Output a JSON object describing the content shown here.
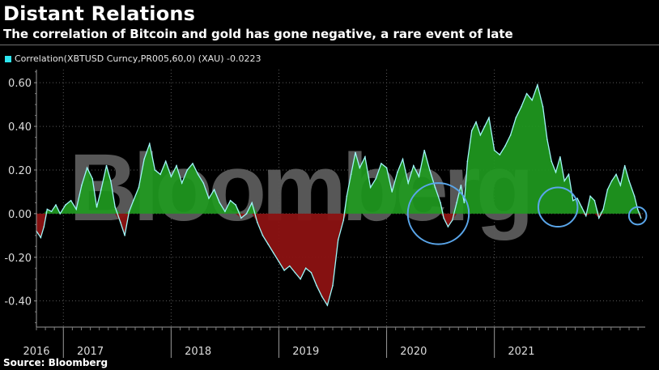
{
  "header": {
    "title": "Distant Relations",
    "subtitle": "The correlation of Bitcoin and gold has gone negative, a rare event of late"
  },
  "legend": {
    "label": "Correlation(XBTUSD Curncy,PR005,60,0) (XAU) -0.0223",
    "color": "#2ee6f0"
  },
  "watermark": "Bloomberg",
  "source": "Source: Bloomberg",
  "colors": {
    "positive_fill": "#1f9a1f",
    "negative_fill": "#8c1212",
    "line": "#9ff6f8",
    "circle": "#5aa6ea",
    "grid": "#5a5a5a"
  },
  "chart_data": {
    "type": "area",
    "title": "Distant Relations",
    "subtitle": "The correlation of Bitcoin and gold has gone negative, a rare event of late",
    "series": [
      {
        "name": "Correlation(XBTUSD Curncy,PR005,60,0) (XAU)",
        "last_value": -0.0223,
        "x": [
          2016.0,
          2016.04,
          2016.07,
          2016.1,
          2016.14,
          2016.18,
          2016.22,
          2016.27,
          2016.32,
          2016.37,
          2016.42,
          2016.47,
          2016.52,
          2016.56,
          2016.6,
          2016.65,
          2016.69,
          2016.73,
          2016.78,
          2016.82,
          2016.86,
          2016.9,
          2016.95,
          2017.0,
          2017.05,
          2017.1,
          2017.15,
          2017.2,
          2017.25,
          2017.3,
          2017.35,
          2017.4,
          2017.45,
          2017.5,
          2017.55,
          2017.6,
          2017.65,
          2017.7,
          2017.75,
          2017.8,
          2017.85,
          2017.9,
          2017.95,
          2018.0,
          2018.05,
          2018.1,
          2018.15,
          2018.2,
          2018.25,
          2018.3,
          2018.35,
          2018.4,
          2018.45,
          2018.5,
          2018.55,
          2018.6,
          2018.65,
          2018.7,
          2018.75,
          2018.8,
          2018.85,
          2018.88,
          2018.92,
          2018.96,
          2019.0,
          2019.05,
          2019.1,
          2019.15,
          2019.2,
          2019.25,
          2019.3,
          2019.35,
          2019.4,
          2019.45,
          2019.5,
          2019.55,
          2019.6,
          2019.65,
          2019.7,
          2019.75,
          2019.78,
          2019.82,
          2019.86,
          2019.9,
          2019.94,
          2019.97,
          2020.0,
          2020.04,
          2020.08,
          2020.12,
          2020.16,
          2020.2,
          2020.25,
          2020.3,
          2020.35,
          2020.4,
          2020.45,
          2020.5,
          2020.55,
          2020.6,
          2020.65,
          2020.7,
          2020.74,
          2020.78,
          2020.82,
          2020.86,
          2020.9,
          2020.94,
          2020.98,
          2021.02,
          2021.06,
          2021.1,
          2021.14,
          2021.18,
          2021.22,
          2021.26,
          2021.3,
          2021.34,
          2021.38,
          2021.42,
          2021.46,
          2021.5,
          2021.55,
          2021.58,
          2021.61
        ],
        "values": [
          -0.08,
          -0.11,
          -0.06,
          0.02,
          0.01,
          0.04,
          0.0,
          0.04,
          0.06,
          0.02,
          0.13,
          0.21,
          0.16,
          0.03,
          0.11,
          0.22,
          0.15,
          0.03,
          -0.04,
          -0.1,
          0.01,
          0.06,
          0.12,
          0.25,
          0.32,
          0.2,
          0.18,
          0.24,
          0.17,
          0.22,
          0.14,
          0.2,
          0.23,
          0.18,
          0.14,
          0.07,
          0.11,
          0.05,
          0.01,
          0.06,
          0.04,
          -0.02,
          0.0,
          0.05,
          -0.04,
          -0.1,
          -0.14,
          -0.18,
          -0.22,
          -0.26,
          -0.24,
          -0.27,
          -0.3,
          -0.25,
          -0.27,
          -0.33,
          -0.38,
          -0.42,
          -0.33,
          -0.12,
          -0.03,
          0.08,
          0.18,
          0.28,
          0.21,
          0.26,
          0.12,
          0.16,
          0.23,
          0.21,
          0.1,
          0.19,
          0.25,
          0.14,
          0.22,
          0.17,
          0.29,
          0.2,
          0.12,
          0.05,
          -0.02,
          -0.06,
          -0.03,
          0.05,
          0.13,
          0.05,
          0.24,
          0.38,
          0.42,
          0.36,
          0.4,
          0.44,
          0.29,
          0.27,
          0.31,
          0.36,
          0.44,
          0.49,
          0.55,
          0.52,
          0.59,
          0.49,
          0.34,
          0.24,
          0.19,
          0.26,
          0.15,
          0.18,
          0.06,
          0.07,
          0.03,
          -0.01,
          0.08,
          0.06,
          -0.02,
          0.02,
          0.11,
          0.15,
          0.18,
          0.13,
          0.22,
          0.15,
          0.08,
          0.02,
          -0.02
        ]
      }
    ],
    "xlim": [
      2016.0,
      2021.65
    ],
    "ylim": [
      -0.52,
      0.66
    ],
    "yticks": [
      0.6,
      0.4,
      0.2,
      0.0,
      -0.2,
      -0.4
    ],
    "ytick_labels": [
      "0.60",
      "0.40",
      "0.20",
      "0.00",
      "-0.20",
      "-0.40"
    ],
    "xtick_labels": [
      {
        "label": "2016",
        "center": 2016.0
      },
      {
        "label": "2017",
        "center": 2016.5
      },
      {
        "label": "2018",
        "center": 2017.5
      },
      {
        "label": "2019",
        "center": 2018.5
      },
      {
        "label": "2020",
        "center": 2019.5
      },
      {
        "label": "2021",
        "center": 2020.5
      }
    ],
    "year_dividers": [
      2016.25,
      2017.25,
      2018.25,
      2019.25,
      2020.25
    ],
    "annotations": [
      {
        "type": "circle",
        "x": 2019.73,
        "y": 0.0,
        "r_data": 0.14
      },
      {
        "type": "circle",
        "x": 2020.84,
        "y": 0.03,
        "r_data": 0.09
      },
      {
        "type": "circle",
        "x": 2021.58,
        "y": -0.01,
        "r_data": 0.04
      }
    ]
  }
}
